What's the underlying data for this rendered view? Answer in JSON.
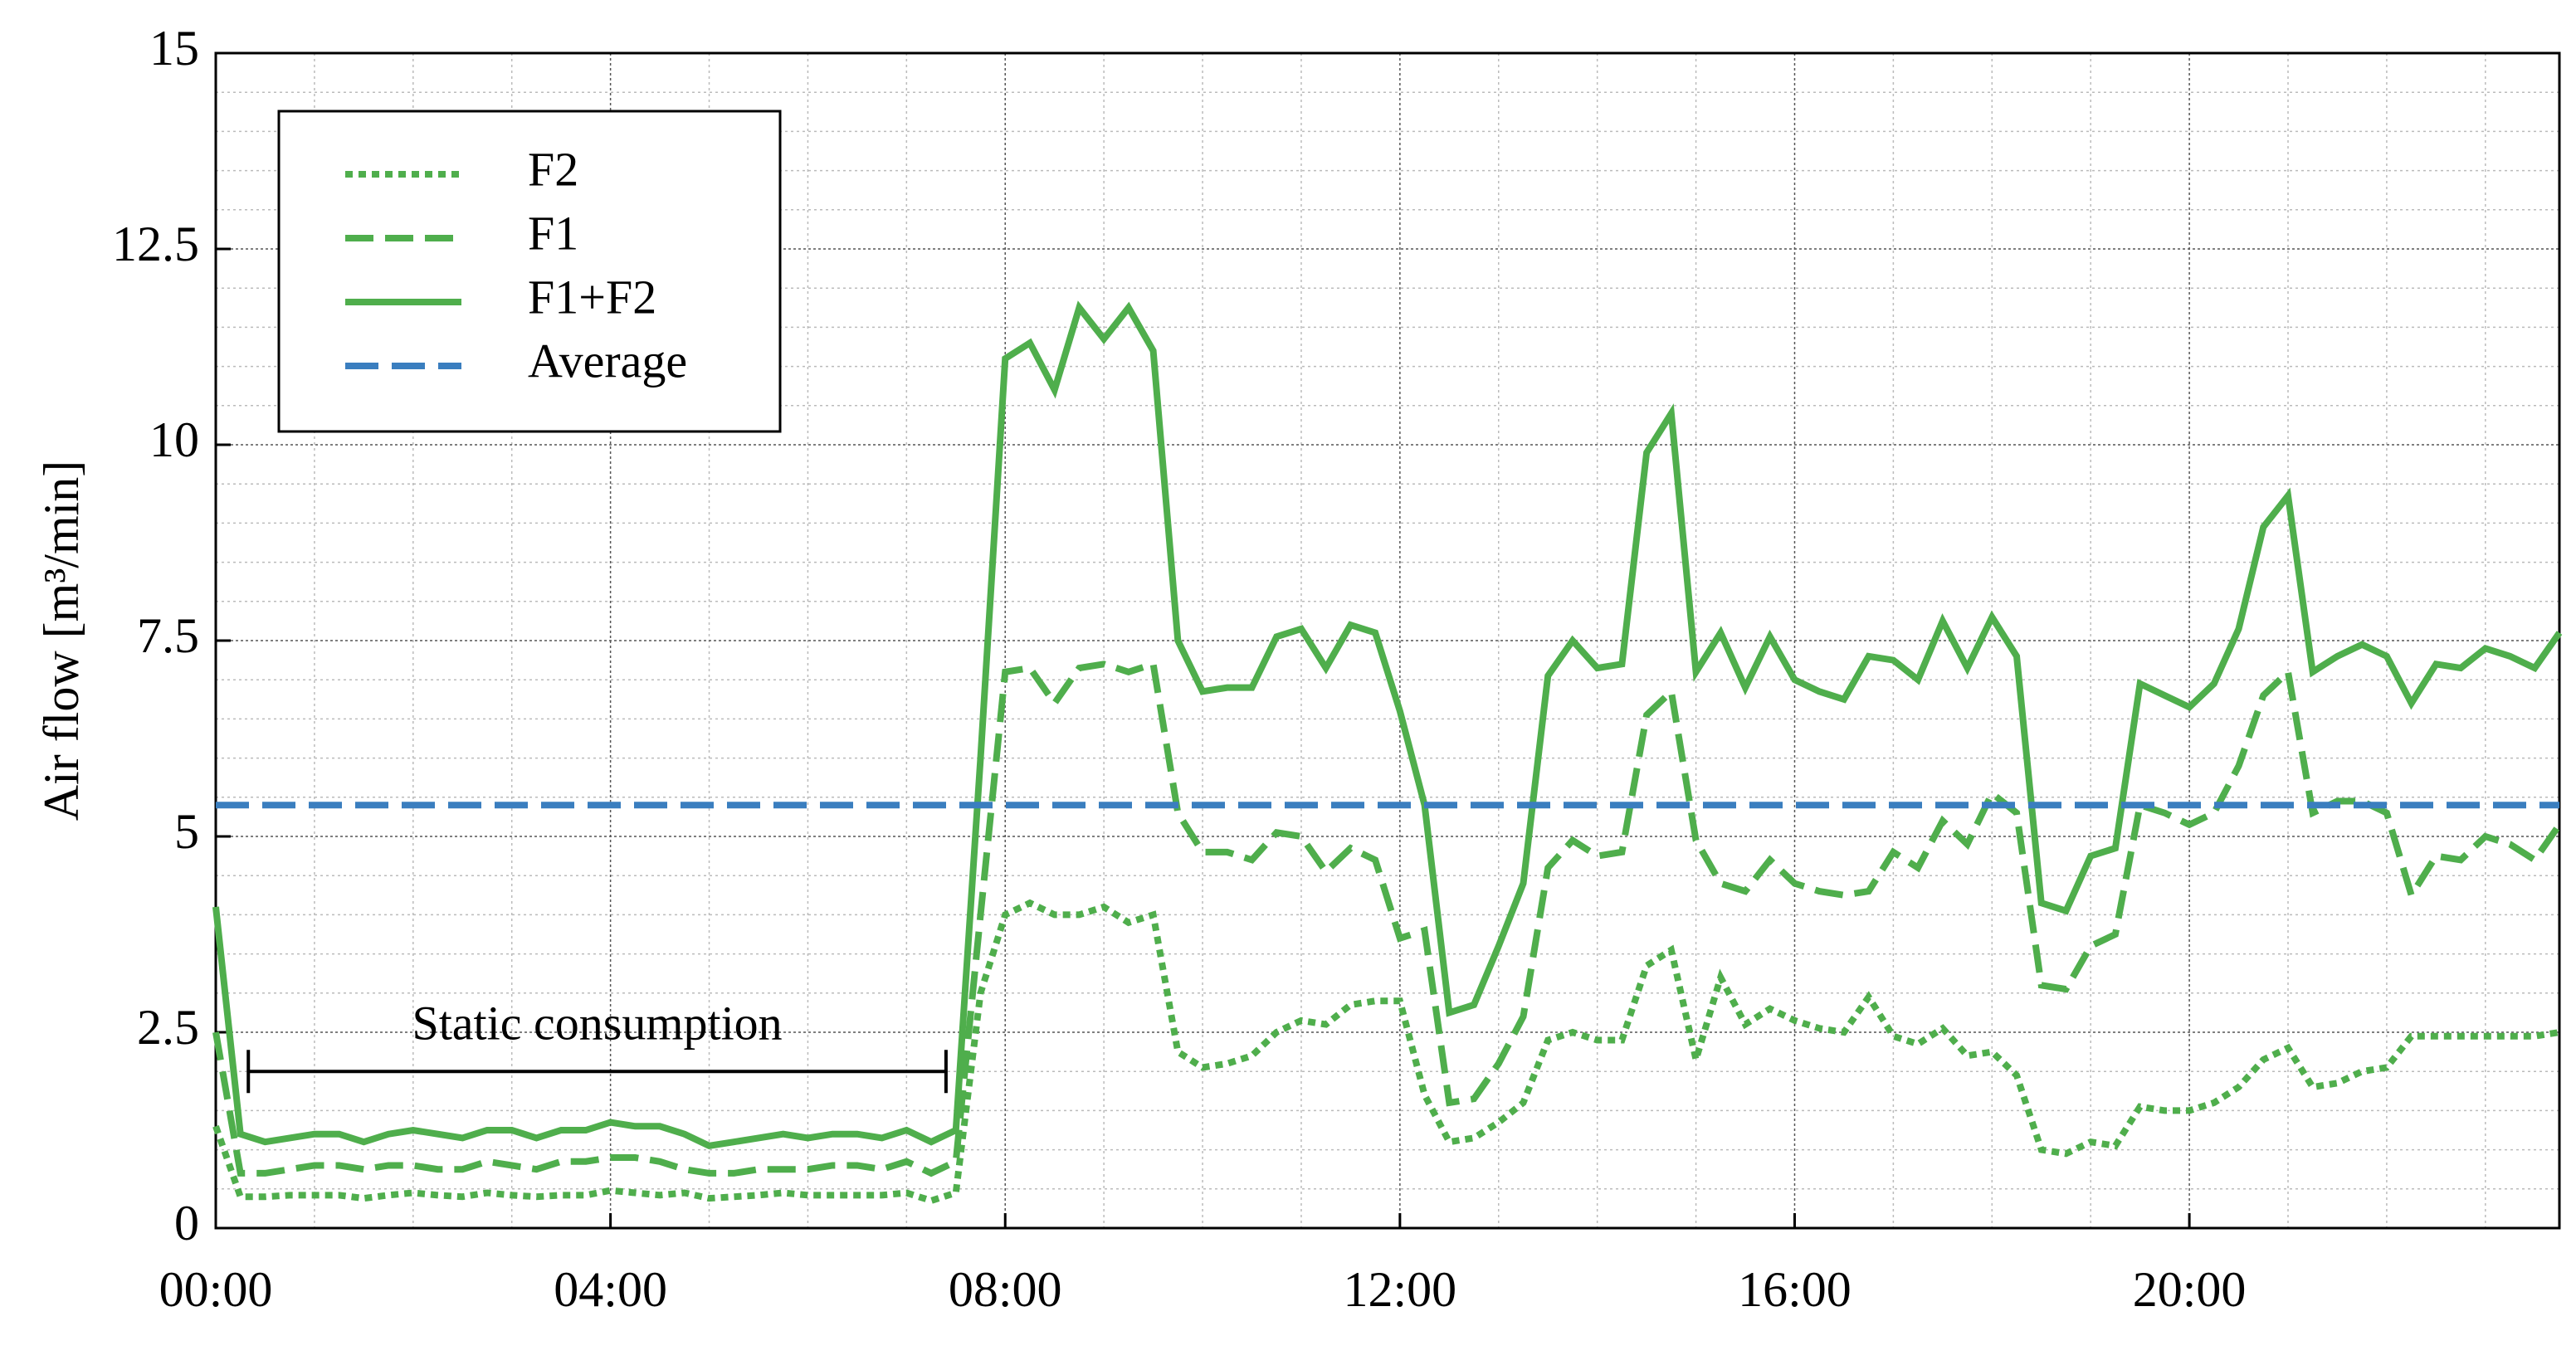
{
  "chart_data": {
    "type": "line",
    "ylabel": "Air flow [m³/min]",
    "x": [
      0,
      0.25,
      0.5,
      0.75,
      1,
      1.25,
      1.5,
      1.75,
      2,
      2.25,
      2.5,
      2.75,
      3,
      3.25,
      3.5,
      3.75,
      4,
      4.25,
      4.5,
      4.75,
      5,
      5.25,
      5.5,
      5.75,
      6,
      6.25,
      6.5,
      6.75,
      7,
      7.25,
      7.5,
      7.75,
      8,
      8.25,
      8.5,
      8.75,
      9,
      9.25,
      9.5,
      9.75,
      10,
      10.25,
      10.5,
      10.75,
      11,
      11.25,
      11.5,
      11.75,
      12,
      12.25,
      12.5,
      12.75,
      13,
      13.25,
      13.5,
      13.75,
      14,
      14.25,
      14.5,
      14.75,
      15,
      15.25,
      15.5,
      15.75,
      16,
      16.25,
      16.5,
      16.75,
      17,
      17.25,
      17.5,
      17.75,
      18,
      18.25,
      18.5,
      18.75,
      19,
      19.25,
      19.5,
      19.75,
      20,
      20.25,
      20.5,
      20.75,
      21,
      21.25,
      21.5,
      21.75,
      22,
      22.25,
      22.5,
      22.75,
      23,
      23.25,
      23.5,
      23.75
    ],
    "series": [
      {
        "name": "F2",
        "color": "#4fae4c",
        "dash": "dotted",
        "values": [
          1.3,
          0.4,
          0.4,
          0.42,
          0.42,
          0.42,
          0.38,
          0.42,
          0.45,
          0.42,
          0.4,
          0.45,
          0.42,
          0.4,
          0.42,
          0.42,
          0.48,
          0.45,
          0.42,
          0.45,
          0.38,
          0.4,
          0.42,
          0.45,
          0.42,
          0.42,
          0.42,
          0.42,
          0.45,
          0.35,
          0.45,
          3.0,
          4.0,
          4.15,
          4.0,
          4.0,
          4.1,
          3.9,
          4.0,
          2.25,
          2.05,
          2.1,
          2.2,
          2.5,
          2.65,
          2.6,
          2.85,
          2.9,
          2.9,
          1.7,
          1.1,
          1.15,
          1.35,
          1.6,
          2.4,
          2.5,
          2.4,
          2.4,
          3.35,
          3.55,
          2.15,
          3.2,
          2.6,
          2.8,
          2.65,
          2.55,
          2.5,
          2.95,
          2.45,
          2.35,
          2.55,
          2.2,
          2.25,
          1.95,
          1.0,
          0.95,
          1.1,
          1.05,
          1.55,
          1.5,
          1.5,
          1.6,
          1.8,
          2.15,
          2.3,
          1.8,
          1.85,
          2.0,
          2.05,
          2.45,
          2.45,
          2.45,
          2.45,
          2.45,
          2.45,
          2.5
        ]
      },
      {
        "name": "F1",
        "color": "#4fae4c",
        "dash": "dashed",
        "values": [
          2.5,
          0.7,
          0.7,
          0.75,
          0.8,
          0.8,
          0.75,
          0.8,
          0.8,
          0.75,
          0.75,
          0.85,
          0.8,
          0.75,
          0.85,
          0.85,
          0.9,
          0.9,
          0.85,
          0.75,
          0.7,
          0.7,
          0.75,
          0.75,
          0.75,
          0.8,
          0.8,
          0.75,
          0.85,
          0.7,
          0.85,
          4.0,
          7.1,
          7.15,
          6.7,
          7.15,
          7.2,
          7.1,
          7.2,
          5.3,
          4.8,
          4.8,
          4.7,
          5.05,
          5.0,
          4.55,
          4.85,
          4.7,
          3.7,
          3.8,
          1.6,
          1.65,
          2.1,
          2.7,
          4.6,
          4.95,
          4.75,
          4.8,
          6.55,
          6.85,
          4.95,
          4.4,
          4.3,
          4.7,
          4.4,
          4.3,
          4.25,
          4.3,
          4.8,
          4.6,
          5.2,
          4.9,
          5.55,
          5.3,
          3.1,
          3.05,
          3.6,
          3.75,
          5.4,
          5.3,
          5.15,
          5.3,
          5.9,
          6.8,
          7.1,
          5.3,
          5.45,
          5.45,
          5.3,
          4.25,
          4.75,
          4.7,
          5.0,
          4.9,
          4.7,
          5.15
        ]
      },
      {
        "name": "F1+F2",
        "color": "#4fae4c",
        "dash": "solid",
        "values": [
          4.1,
          1.2,
          1.1,
          1.15,
          1.2,
          1.2,
          1.1,
          1.2,
          1.25,
          1.2,
          1.15,
          1.25,
          1.25,
          1.15,
          1.25,
          1.25,
          1.35,
          1.3,
          1.3,
          1.2,
          1.05,
          1.1,
          1.15,
          1.2,
          1.15,
          1.2,
          1.2,
          1.15,
          1.25,
          1.1,
          1.25,
          6.0,
          11.1,
          11.3,
          10.7,
          11.75,
          11.35,
          11.75,
          11.2,
          7.5,
          6.85,
          6.9,
          6.9,
          7.55,
          7.65,
          7.15,
          7.7,
          7.6,
          6.6,
          5.4,
          2.75,
          2.85,
          3.6,
          4.4,
          7.05,
          7.5,
          7.15,
          7.2,
          9.9,
          10.4,
          7.1,
          7.6,
          6.9,
          7.55,
          7.0,
          6.85,
          6.75,
          7.3,
          7.25,
          7.0,
          7.75,
          7.15,
          7.8,
          7.3,
          4.15,
          4.05,
          4.75,
          4.85,
          6.95,
          6.8,
          6.65,
          6.95,
          7.65,
          8.95,
          9.35,
          7.1,
          7.3,
          7.45,
          7.3,
          6.7,
          7.2,
          7.15,
          7.4,
          7.3,
          7.15,
          7.6
        ]
      },
      {
        "name": "Average",
        "color": "#3a7ebf",
        "dash": "long-dashed",
        "value": 5.4
      }
    ],
    "annotation": {
      "text": "Static consumption",
      "x": [
        0.33,
        7.4
      ],
      "y": 2.0
    },
    "xlim": [
      0,
      23.75
    ],
    "xticks": [
      {
        "value": 0,
        "label": "00:00"
      },
      {
        "value": 4,
        "label": "04:00"
      },
      {
        "value": 8,
        "label": "08:00"
      },
      {
        "value": 12,
        "label": "12:00"
      },
      {
        "value": 16,
        "label": "16:00"
      },
      {
        "value": 20,
        "label": "20:00"
      }
    ],
    "ylim": [
      0,
      15
    ],
    "yticks": [
      0,
      2.5,
      5,
      7.5,
      10,
      12.5,
      15
    ],
    "grid": true,
    "legend": "upper-left"
  }
}
